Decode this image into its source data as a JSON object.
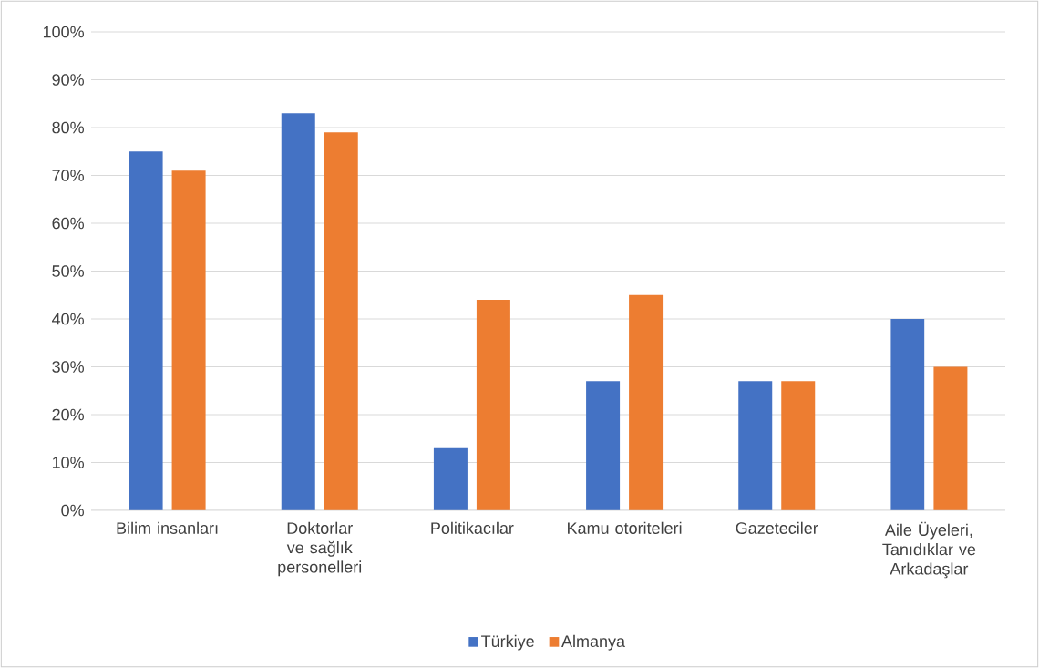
{
  "chart_data": {
    "type": "bar",
    "categories": [
      "Bilim insanları",
      "Doktorlar ve sağlık personelleri",
      "Politikacılar",
      "Kamu otoriteleri",
      "Gazeteciler",
      "Aile Üyeleri, Tanıdıklar ve Arkadaşlar"
    ],
    "series": [
      {
        "name": "Türkiye",
        "color": "#4472c4",
        "values": [
          75,
          83,
          13,
          27,
          27,
          40
        ]
      },
      {
        "name": "Almanya",
        "color": "#ed7d31",
        "values": [
          71,
          79,
          44,
          45,
          27,
          30
        ]
      }
    ],
    "ylim": [
      0,
      100
    ],
    "yticks": [
      {
        "value": 0,
        "label": "0%"
      },
      {
        "value": 10,
        "label": "10%"
      },
      {
        "value": 20,
        "label": "20%"
      },
      {
        "value": 30,
        "label": "30%"
      },
      {
        "value": 40,
        "label": "40%"
      },
      {
        "value": 50,
        "label": "50%"
      },
      {
        "value": 60,
        "label": "60%"
      },
      {
        "value": 70,
        "label": "70%"
      },
      {
        "value": 80,
        "label": "80%"
      },
      {
        "value": 90,
        "label": "90%"
      },
      {
        "value": 100,
        "label": "100%"
      }
    ],
    "grid": "y",
    "legend": "bottom"
  }
}
